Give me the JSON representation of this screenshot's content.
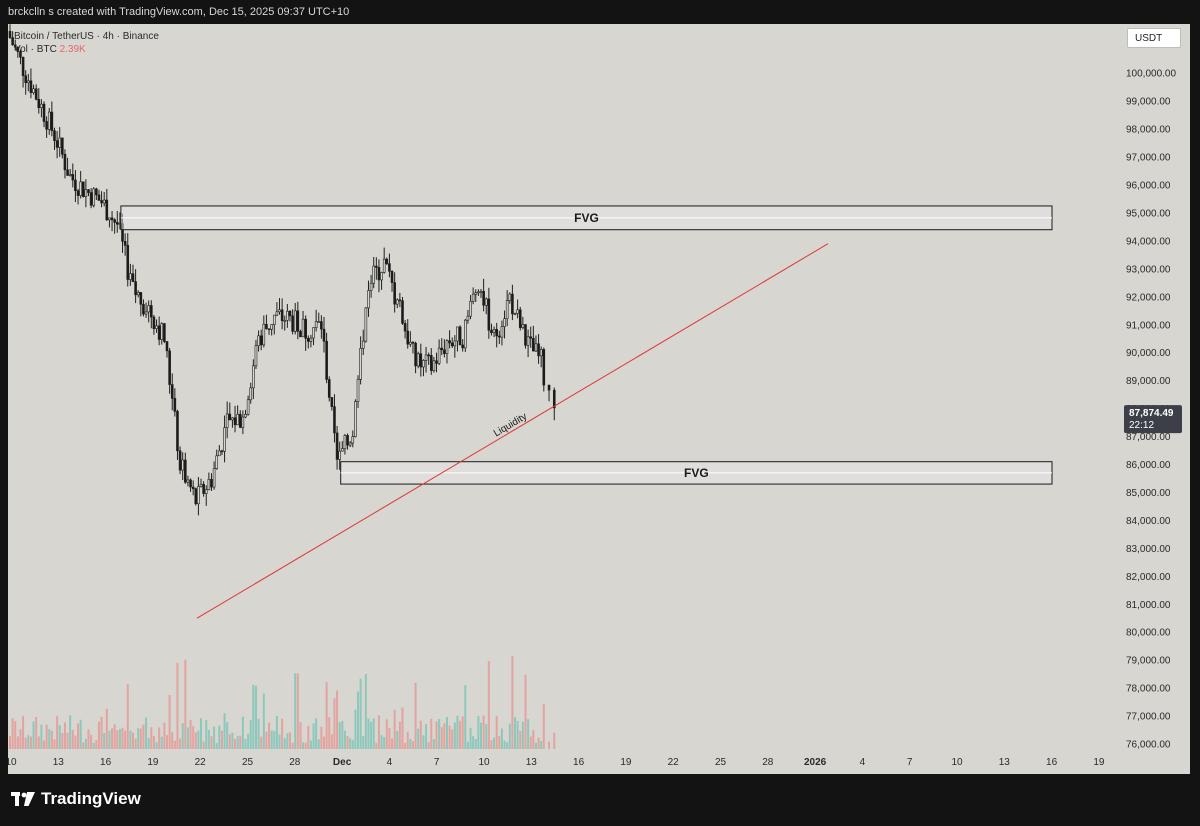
{
  "header": {
    "attribution": "brckclln s created with TradingView.com, Dec 15, 2025 09:37 UTC+10"
  },
  "legend": {
    "symbol": "Bitcoin / TetherUS · 4h · Binance",
    "volume_label": "Vol · BTC",
    "volume_value": "2.39K"
  },
  "price_scale": {
    "currency": "USDT",
    "last_price": "87,874.49",
    "countdown": "22:12",
    "last_price_color": "#3d3f48"
  },
  "annotations": {
    "fvg_upper_label": "FVG",
    "fvg_lower_label": "FVG",
    "trendline_label": "Liquidity",
    "trendline_color": "#e03838"
  },
  "branding": {
    "logo_text": "TradingView"
  },
  "colors": {
    "up": "#3a3a3a",
    "down": "#1a1a1a",
    "volume_up": "#7fc6b8",
    "volume_down": "#e59a96",
    "background": "#d7d6d0"
  },
  "chart_data": {
    "type": "candlestick",
    "symbol": "BTC/USDT",
    "timeframe": "4h",
    "ylim": [
      75700,
      101200
    ],
    "y_ticks": [
      100000,
      99000,
      98000,
      97000,
      96000,
      95000,
      94000,
      93000,
      92000,
      91000,
      90000,
      89000,
      88000,
      87000,
      86000,
      85000,
      84000,
      83000,
      82000,
      81000,
      80000,
      79000,
      78000,
      77000,
      76000
    ],
    "x_ticks": [
      "10",
      "13",
      "16",
      "19",
      "22",
      "25",
      "28",
      "Dec",
      "4",
      "7",
      "10",
      "13",
      "16",
      "19",
      "22",
      "25",
      "28",
      "2026",
      "4",
      "7",
      "10",
      "13",
      "16",
      "19"
    ],
    "price_path": [
      {
        "date": "Nov 10",
        "price": 101500
      },
      {
        "date": "Nov 11",
        "price": 100200
      },
      {
        "date": "Nov 12",
        "price": 99000
      },
      {
        "date": "Nov 13",
        "price": 97800
      },
      {
        "date": "Nov 14",
        "price": 96300
      },
      {
        "date": "Nov 15",
        "price": 95800
      },
      {
        "date": "Nov 16",
        "price": 95400
      },
      {
        "date": "Nov 17",
        "price": 94600
      },
      {
        "date": "Nov 18",
        "price": 92200
      },
      {
        "date": "Nov 19",
        "price": 91600
      },
      {
        "date": "Nov 20",
        "price": 90500
      },
      {
        "date": "Nov 21",
        "price": 86000
      },
      {
        "date": "Nov 22",
        "price": 84700
      },
      {
        "date": "Nov 23",
        "price": 85500
      },
      {
        "date": "Nov 24",
        "price": 87500
      },
      {
        "date": "Nov 25",
        "price": 87700
      },
      {
        "date": "Nov 26",
        "price": 90500
      },
      {
        "date": "Nov 27",
        "price": 91300
      },
      {
        "date": "Nov 28",
        "price": 91200
      },
      {
        "date": "Nov 29",
        "price": 90800
      },
      {
        "date": "Nov 30",
        "price": 91000
      },
      {
        "date": "Dec 1",
        "price": 86000
      },
      {
        "date": "Dec 2",
        "price": 87200
      },
      {
        "date": "Dec 3",
        "price": 92500
      },
      {
        "date": "Dec 4",
        "price": 93200
      },
      {
        "date": "Dec 5",
        "price": 91500
      },
      {
        "date": "Dec 6",
        "price": 89600
      },
      {
        "date": "Dec 7",
        "price": 89500
      },
      {
        "date": "Dec 8",
        "price": 90400
      },
      {
        "date": "Dec 9",
        "price": 90600
      },
      {
        "date": "Dec 10",
        "price": 92600
      },
      {
        "date": "Dec 11",
        "price": 90500
      },
      {
        "date": "Dec 12",
        "price": 92000
      },
      {
        "date": "Dec 13",
        "price": 90400
      },
      {
        "date": "Dec 14",
        "price": 89700
      },
      {
        "date": "Dec 15",
        "price": 87874
      }
    ],
    "zones": [
      {
        "label": "FVG",
        "from_date": "Nov 17",
        "to_date": "Jan 16",
        "high": 95250,
        "low": 94400
      },
      {
        "label": "FVG",
        "from_date": "Dec 1",
        "to_date": "Jan 16",
        "high": 86100,
        "low": 85300
      }
    ],
    "trendline": {
      "label": "Liquidity",
      "from": {
        "date": "Nov 22",
        "price": 80500
      },
      "to": {
        "date": "Dec 31",
        "price": 93900
      }
    },
    "last_price": 87874.49
  }
}
